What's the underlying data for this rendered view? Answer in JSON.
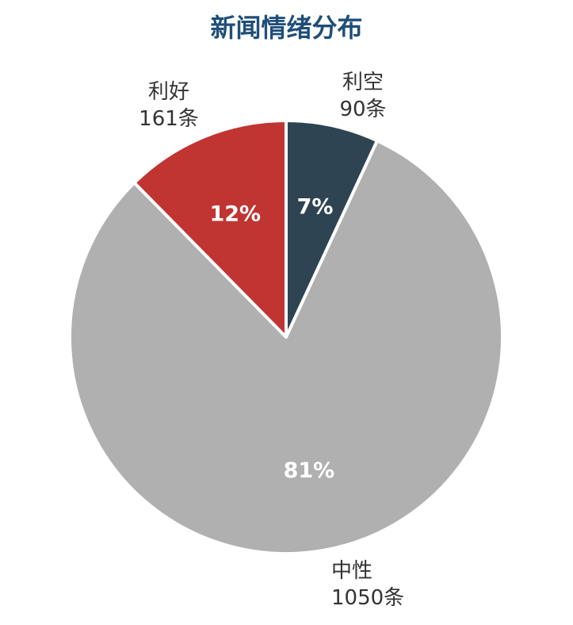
{
  "chart_data": {
    "type": "pie",
    "title": "新闻情绪分布",
    "slices": [
      {
        "name": "利空",
        "value": 90,
        "unit": "条",
        "percent_label": "7%",
        "color": "#2e4453"
      },
      {
        "name": "中性",
        "value": 1050,
        "unit": "条",
        "percent_label": "81%",
        "color": "#b0b0b0"
      },
      {
        "name": "利好",
        "value": 161,
        "unit": "条",
        "percent_label": "12%",
        "color": "#c03432"
      }
    ],
    "start": "12 o'clock",
    "direction": "clockwise",
    "legend": "none",
    "slice_border_color": "#ffffff"
  }
}
